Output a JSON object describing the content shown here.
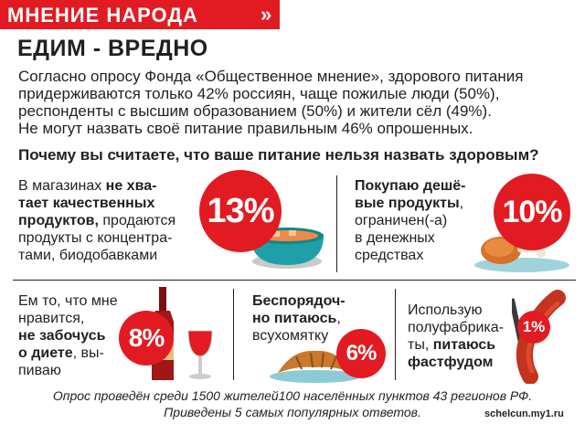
{
  "header": {
    "rubric": "МНЕНИЕ НАРОДА",
    "arrow": "»",
    "headline": "ЕДИМ - ВРЕДНО"
  },
  "intro": {
    "line1": "Согласно опросу Фонда «Общественное мнение», здорового питания",
    "line2": "придерживаются только 42% россиян, чаще пожилые люди (50%),",
    "line3": "респонденты с высшим образованием (50%) и жители сёл (49%).",
    "line4": "Не могут назвать своё питание правильным 46% опрошенных."
  },
  "question": "Почему вы считаете, что ваше питание нельзя назвать здоровым?",
  "answers": [
    {
      "l1a": "В магазинах ",
      "l1b": "не хва-",
      "l2": "тает качественных",
      "l3a": "продуктов,",
      "l3b": " продаются",
      "l4": "продукты с концентра-",
      "l5": "тами, биодобавками",
      "percent": "13%",
      "icon": "pot-icon"
    },
    {
      "l1": "Покупаю дешё-",
      "l2a": "вые продукты",
      "l2b": ",",
      "l3": "ограничен(-а)",
      "l4": "в денежных",
      "l5": "средствах",
      "percent": "10%",
      "icon": "chicken-leg-icon"
    },
    {
      "l1": "Ем то, что мне",
      "l2": "нравится,",
      "l3": "не забочусь",
      "l4a": "о диете",
      "l4b": ", вы-",
      "l5": "пиваю",
      "percent": "8%",
      "icon": "wine-icon"
    },
    {
      "l1": "Беспорядоч-",
      "l2a": "но питаюсь",
      "l2b": ",",
      "l3": "всухомятку",
      "percent": "6%",
      "icon": "croissant-icon"
    },
    {
      "l1": "Использую",
      "l2": "полуфабрика-",
      "l3a": "ты, ",
      "l3b": "питаюсь",
      "l4": "фастфудом",
      "percent": "1%",
      "icon": "sausage-icon"
    }
  ],
  "footer": {
    "line1": "Опрос проведён среди 1500 жителей100 населённых пунктов 43 регионов РФ.",
    "line2": "Приведены 5 самых популярных ответов."
  },
  "watermark": "schelcun.my1.ru",
  "colors": {
    "accent": "#e21b22",
    "text": "#231f20"
  }
}
